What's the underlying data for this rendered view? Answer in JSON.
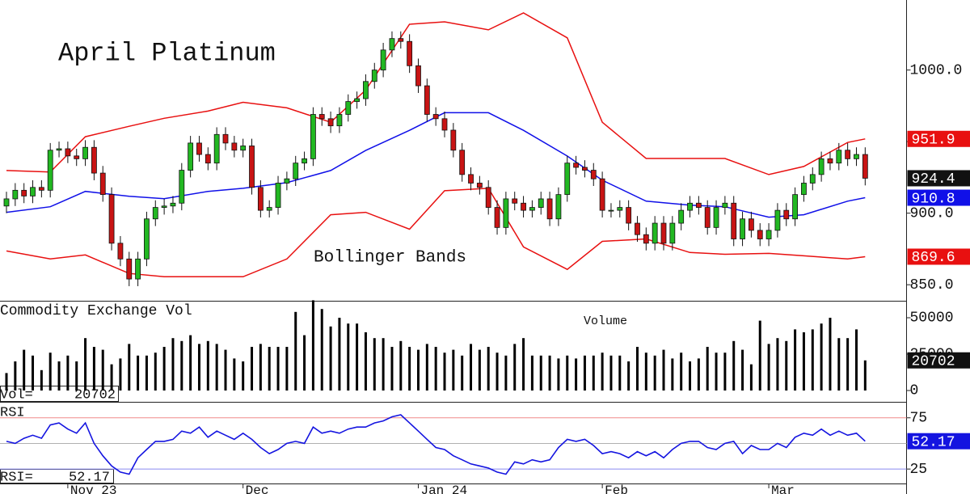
{
  "chart_data": [
    {
      "type": "candlestick",
      "title": "April Platinum",
      "annotation": "Bollinger Bands",
      "categories": [
        null,
        null,
        null,
        null,
        null,
        null,
        null,
        "Nov 23",
        null,
        null,
        null,
        null,
        null,
        null,
        null,
        null,
        null,
        null,
        null,
        null,
        null,
        null,
        null,
        null,
        null,
        null,
        null,
        "Dec",
        null,
        null,
        null,
        null,
        null,
        null,
        null,
        null,
        null,
        null,
        null,
        null,
        null,
        null,
        null,
        null,
        null,
        null,
        null,
        "Jan 24",
        null,
        null,
        null,
        null,
        null,
        null,
        null,
        null,
        null,
        null,
        null,
        null,
        null,
        null,
        null,
        null,
        null,
        null,
        null,
        null,
        "Feb",
        null,
        null,
        null,
        null,
        null,
        null,
        null,
        null,
        null,
        null,
        null,
        null,
        null,
        null,
        null,
        null,
        null,
        null,
        "Mar",
        null,
        null,
        null,
        null,
        null,
        null,
        null,
        null,
        null,
        null,
        null
      ],
      "open": [
        905,
        910,
        916,
        912,
        918,
        916,
        944,
        945,
        940,
        938,
        946,
        928,
        913,
        879,
        868,
        854,
        868,
        896,
        904,
        905,
        907,
        930,
        949,
        941,
        935,
        955,
        949,
        944,
        947,
        918,
        902,
        904,
        921,
        924,
        935,
        938,
        969,
        966,
        961,
        969,
        978,
        980,
        992,
        1000,
        1014,
        1022,
        1020,
        1003,
        989,
        969,
        966,
        958,
        944,
        927,
        921,
        918,
        904,
        890,
        910,
        907,
        902,
        904,
        910,
        896,
        913,
        935,
        932,
        930,
        924,
        902,
        902,
        904,
        893,
        885,
        879,
        893,
        879,
        893,
        902,
        907,
        904,
        890,
        904,
        907,
        882,
        896,
        888,
        882,
        888,
        902,
        896,
        913,
        921,
        927,
        938,
        935,
        944,
        938,
        941
      ],
      "high": [
        915,
        921,
        921,
        923,
        923,
        949,
        950,
        950,
        945,
        951,
        951,
        933,
        918,
        884,
        873,
        873,
        901,
        909,
        910,
        912,
        935,
        954,
        954,
        946,
        960,
        960,
        954,
        952,
        952,
        923,
        909,
        926,
        929,
        940,
        943,
        974,
        974,
        971,
        974,
        983,
        985,
        997,
        1005,
        1019,
        1027,
        1027,
        1025,
        1008,
        994,
        974,
        971,
        963,
        949,
        932,
        926,
        923,
        909,
        915,
        915,
        912,
        909,
        915,
        915,
        918,
        940,
        940,
        937,
        935,
        929,
        907,
        909,
        909,
        898,
        890,
        898,
        898,
        898,
        907,
        912,
        912,
        909,
        909,
        912,
        912,
        901,
        901,
        893,
        893,
        907,
        907,
        918,
        926,
        932,
        943,
        943,
        949,
        949,
        946,
        946
      ],
      "low": [
        900,
        905,
        907,
        907,
        911,
        911,
        939,
        935,
        933,
        933,
        923,
        908,
        874,
        863,
        849,
        849,
        863,
        891,
        899,
        900,
        902,
        925,
        936,
        930,
        930,
        944,
        939,
        939,
        913,
        897,
        897,
        899,
        916,
        919,
        930,
        933,
        961,
        956,
        956,
        964,
        973,
        975,
        987,
        995,
        1009,
        1015,
        998,
        984,
        964,
        961,
        953,
        939,
        922,
        916,
        913,
        899,
        885,
        885,
        902,
        897,
        897,
        899,
        891,
        891,
        908,
        927,
        925,
        919,
        897,
        897,
        897,
        888,
        880,
        874,
        874,
        874,
        874,
        888,
        897,
        899,
        885,
        885,
        899,
        877,
        877,
        883,
        877,
        877,
        883,
        891,
        891,
        908,
        916,
        922,
        930,
        930,
        933,
        933,
        919.4
      ],
      "close": [
        910,
        916,
        912,
        918,
        916,
        944,
        945,
        940,
        938,
        946,
        928,
        913,
        879,
        868,
        854,
        868,
        896,
        904,
        905,
        907,
        930,
        949,
        941,
        935,
        955,
        949,
        944,
        947,
        918,
        902,
        904,
        921,
        924,
        935,
        938,
        969,
        966,
        961,
        969,
        978,
        980,
        992,
        1000,
        1014,
        1022,
        1020,
        1003,
        989,
        969,
        966,
        958,
        944,
        927,
        921,
        918,
        904,
        890,
        910,
        907,
        902,
        904,
        910,
        896,
        913,
        935,
        932,
        930,
        924,
        902,
        902,
        904,
        893,
        885,
        879,
        893,
        879,
        893,
        902,
        907,
        904,
        890,
        904,
        907,
        882,
        896,
        888,
        882,
        888,
        902,
        896,
        913,
        921,
        927,
        938,
        935,
        944,
        938,
        941,
        924.4
      ],
      "up_color": "#22b822",
      "down_color": "#c81414",
      "tag_color": "#111111",
      "series": [
        {
          "color": "#e81010",
          "x": [
            0,
            5,
            9,
            14,
            18,
            23,
            27,
            32,
            37,
            41,
            46,
            50,
            55,
            59,
            64,
            68,
            73,
            78,
            82,
            87,
            91,
            96,
            98
          ],
          "values": [
            929.8,
            928.7,
            953.4,
            960.7,
            966.3,
            971.3,
            977.5,
            973.6,
            963.5,
            986.0,
            1032.0,
            1033.7,
            1028.1,
            1039.9,
            1022.5,
            963.5,
            938.2,
            938.2,
            938.2,
            927.0,
            932.6,
            949.4,
            951.9
          ]
        },
        {
          "color": "#1010e8",
          "x": [
            0,
            5,
            9,
            14,
            18,
            23,
            27,
            32,
            37,
            41,
            46,
            50,
            55,
            59,
            64,
            68,
            73,
            78,
            82,
            87,
            91,
            96,
            98
          ],
          "values": [
            900.6,
            904.5,
            915.2,
            911.8,
            910.1,
            915.2,
            917.4,
            921.3,
            929.8,
            943.8,
            957.9,
            970.2,
            970.2,
            957.9,
            939.9,
            923.0,
            908.4,
            905.6,
            904.5,
            897.2,
            898.9,
            908.4,
            910.8
          ]
        },
        {
          "color": "#e81010",
          "x": [
            0,
            5,
            9,
            14,
            18,
            23,
            27,
            32,
            37,
            41,
            46,
            50,
            55,
            59,
            64,
            68,
            73,
            78,
            82,
            87,
            91,
            96,
            98
          ],
          "values": [
            873.6,
            868.0,
            870.8,
            857.9,
            855.6,
            855.6,
            855.6,
            868.0,
            898.9,
            900.6,
            888.8,
            915.7,
            917.4,
            876.4,
            860.7,
            880.3,
            882.0,
            872.5,
            871.3,
            871.9,
            870.2,
            868.0,
            869.6
          ]
        }
      ],
      "ylim": [
        838.8,
        1047.8
      ],
      "yticks": [
        {
          "value": 850,
          "label": "850.0"
        },
        {
          "value": 900,
          "label": "900.0"
        },
        {
          "value": 950,
          "label": "950.0"
        },
        {
          "value": 1000,
          "label": "1000.0"
        }
      ],
      "last_value_tags": true
    },
    {
      "type": "bar",
      "title": "Commodity Exchange Vol",
      "subtitle": "Volume",
      "value_caption": "Vol=",
      "color": "#000000",
      "tag_color": "#111111",
      "values": [
        12000,
        20000,
        28000,
        24000,
        14000,
        26000,
        20000,
        24000,
        20000,
        36000,
        30000,
        28000,
        18000,
        22000,
        32000,
        24000,
        24000,
        26000,
        30000,
        36000,
        34000,
        38000,
        32000,
        34000,
        32000,
        28000,
        22000,
        20000,
        30000,
        32000,
        30000,
        30000,
        30000,
        54000,
        38000,
        62000,
        56000,
        44000,
        50000,
        46000,
        46000,
        40000,
        36000,
        36000,
        30000,
        34000,
        30000,
        28000,
        32000,
        30000,
        26000,
        28000,
        24000,
        32000,
        28000,
        30000,
        26000,
        24000,
        32000,
        36000,
        24000,
        24000,
        24000,
        22000,
        24000,
        22000,
        24000,
        24000,
        26000,
        24000,
        24000,
        20000,
        30000,
        26000,
        24000,
        28000,
        22000,
        26000,
        20000,
        22000,
        30000,
        26000,
        26000,
        34000,
        28000,
        18000,
        48000,
        32000,
        36000,
        34000,
        42000,
        40000,
        42000,
        46000,
        50000,
        36000,
        36000,
        42000,
        20702
      ],
      "ylim": [
        -7778,
        61111
      ],
      "yticks": [
        0,
        25000,
        50000
      ],
      "last_value_tags": true
    },
    {
      "type": "line",
      "title": "RSI",
      "value_caption": "RSI=",
      "color": "#1414e0",
      "tag_color": "#1414e0",
      "values": [
        52,
        50,
        55,
        58,
        55,
        68,
        70,
        64,
        60,
        70,
        50,
        38,
        28,
        22,
        20,
        36,
        44,
        52,
        52,
        54,
        62,
        60,
        66,
        56,
        62,
        58,
        54,
        60,
        54,
        46,
        40,
        44,
        50,
        52,
        50,
        66,
        60,
        62,
        60,
        64,
        66,
        66,
        70,
        72,
        76,
        78,
        70,
        62,
        54,
        46,
        44,
        38,
        34,
        30,
        28,
        26,
        22,
        20,
        32,
        30,
        34,
        32,
        34,
        46,
        54,
        52,
        54,
        48,
        40,
        42,
        40,
        36,
        42,
        38,
        42,
        36,
        44,
        50,
        52,
        52,
        46,
        44,
        50,
        52,
        40,
        48,
        44,
        44,
        50,
        46,
        56,
        60,
        58,
        64,
        58,
        62,
        58,
        60,
        52.17
      ],
      "ylim": [
        10.9,
        89.8
      ],
      "yticks": [
        25,
        75
      ],
      "hlines": [
        {
          "value": 75,
          "color": "#f08a8a"
        },
        {
          "value": 50,
          "color": "#b0b0b0"
        },
        {
          "value": 25,
          "color": "#8a8af0"
        }
      ],
      "last_value_tags": true
    }
  ]
}
